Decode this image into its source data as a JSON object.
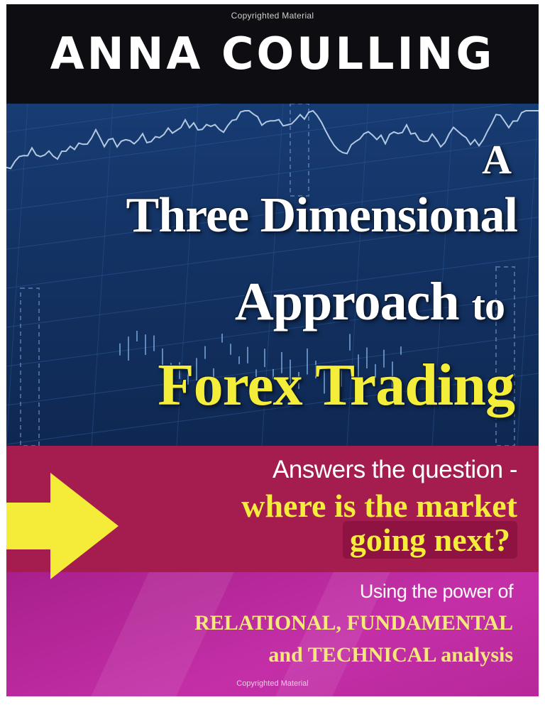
{
  "cover": {
    "copyright_top": "Copyrighted Material",
    "author": "ANNA COULLING",
    "title": {
      "line1": "A",
      "line2": "Three Dimensional",
      "line3_main": "Approach",
      "line3_small": "to",
      "line4": "Forex Trading"
    },
    "tagline": {
      "line1": "Answers the question -",
      "line2": "where is the market",
      "line3": "going next?"
    },
    "subtitle": {
      "line1": "Using the power of",
      "line2": "RELATIONAL, FUNDAMENTAL",
      "line3": "and TECHNICAL analysis"
    },
    "copyright_bottom": "Copyrighted Material"
  },
  "colors": {
    "author_band": "#0e0e12",
    "chart_band": "#173c73",
    "title_white": "#ffffff",
    "title_yellow": "#f4ee3a",
    "red_band": "#a51c4e",
    "purple_band": "#b8289a",
    "arrow": "#f5ec3a"
  },
  "icons": {
    "arrow": "right-arrow-icon"
  }
}
